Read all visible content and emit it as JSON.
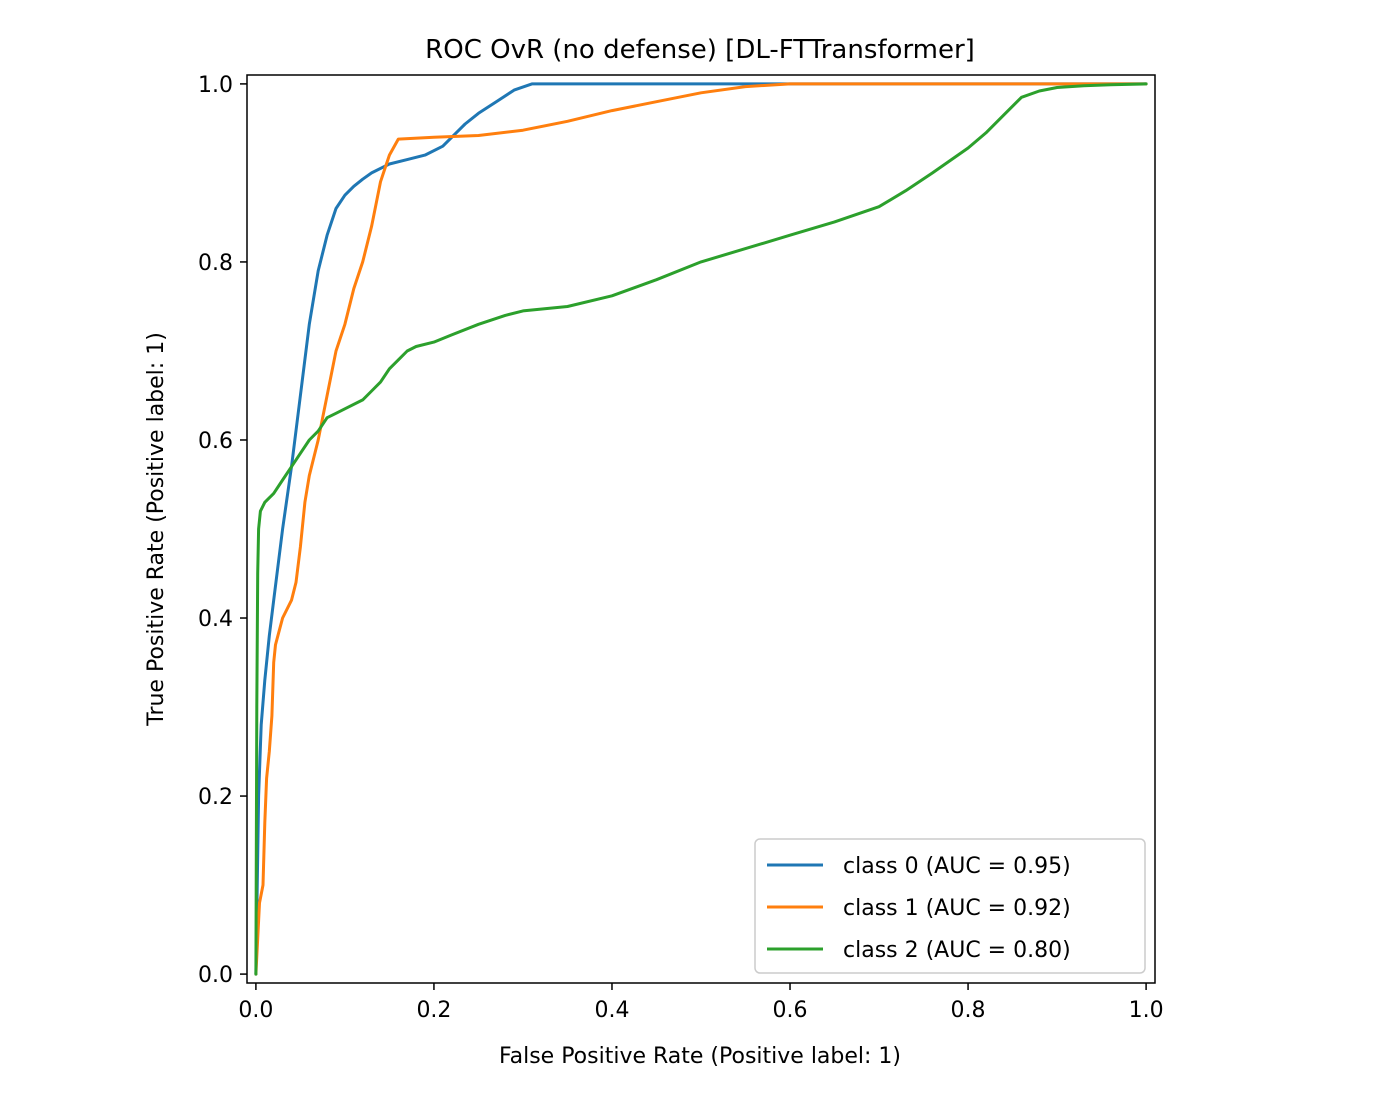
{
  "chart_data": {
    "type": "line",
    "title": "ROC OvR (no defense) [DL-FTTransformer]",
    "xlabel": "False Positive Rate (Positive label: 1)",
    "ylabel": "True Positive Rate (Positive label: 1)",
    "xlim": [
      -0.01,
      1.01
    ],
    "ylim": [
      -0.01,
      1.01
    ],
    "xticks": [
      "0.0",
      "0.2",
      "0.4",
      "0.6",
      "0.8",
      "1.0"
    ],
    "yticks": [
      "0.0",
      "0.2",
      "0.4",
      "0.6",
      "0.8",
      "1.0"
    ],
    "grid": false,
    "legend_position": "lower-right",
    "series": [
      {
        "name": "class 0 (AUC = 0.95)",
        "color": "#1f77b4",
        "points": [
          [
            0,
            0
          ],
          [
            0.003,
            0.2
          ],
          [
            0.006,
            0.28
          ],
          [
            0.01,
            0.33
          ],
          [
            0.015,
            0.38
          ],
          [
            0.02,
            0.42
          ],
          [
            0.03,
            0.5
          ],
          [
            0.04,
            0.57
          ],
          [
            0.05,
            0.65
          ],
          [
            0.06,
            0.73
          ],
          [
            0.07,
            0.79
          ],
          [
            0.08,
            0.83
          ],
          [
            0.09,
            0.86
          ],
          [
            0.1,
            0.875
          ],
          [
            0.11,
            0.885
          ],
          [
            0.12,
            0.893
          ],
          [
            0.13,
            0.9
          ],
          [
            0.15,
            0.91
          ],
          [
            0.17,
            0.915
          ],
          [
            0.19,
            0.92
          ],
          [
            0.21,
            0.93
          ],
          [
            0.22,
            0.94
          ],
          [
            0.235,
            0.955
          ],
          [
            0.25,
            0.967
          ],
          [
            0.27,
            0.98
          ],
          [
            0.29,
            0.993
          ],
          [
            0.31,
            1.0
          ],
          [
            0.35,
            1.0
          ],
          [
            0.5,
            1.0
          ],
          [
            1.0,
            1.0
          ]
        ]
      },
      {
        "name": "class 1 (AUC = 0.92)",
        "color": "#ff7f0e",
        "points": [
          [
            0,
            0
          ],
          [
            0.002,
            0.04
          ],
          [
            0.004,
            0.08
          ],
          [
            0.008,
            0.1
          ],
          [
            0.01,
            0.17
          ],
          [
            0.012,
            0.22
          ],
          [
            0.015,
            0.25
          ],
          [
            0.018,
            0.29
          ],
          [
            0.02,
            0.35
          ],
          [
            0.022,
            0.37
          ],
          [
            0.03,
            0.4
          ],
          [
            0.04,
            0.42
          ],
          [
            0.045,
            0.44
          ],
          [
            0.05,
            0.48
          ],
          [
            0.055,
            0.53
          ],
          [
            0.06,
            0.56
          ],
          [
            0.07,
            0.6
          ],
          [
            0.08,
            0.65
          ],
          [
            0.09,
            0.7
          ],
          [
            0.1,
            0.73
          ],
          [
            0.11,
            0.77
          ],
          [
            0.12,
            0.8
          ],
          [
            0.13,
            0.84
          ],
          [
            0.14,
            0.89
          ],
          [
            0.15,
            0.92
          ],
          [
            0.16,
            0.938
          ],
          [
            0.2,
            0.94
          ],
          [
            0.25,
            0.942
          ],
          [
            0.3,
            0.948
          ],
          [
            0.35,
            0.958
          ],
          [
            0.4,
            0.97
          ],
          [
            0.45,
            0.98
          ],
          [
            0.5,
            0.99
          ],
          [
            0.55,
            0.997
          ],
          [
            0.6,
            1.0
          ],
          [
            0.8,
            1.0
          ],
          [
            1.0,
            1.0
          ]
        ]
      },
      {
        "name": "class 2 (AUC = 0.80)",
        "color": "#2ca02c",
        "points": [
          [
            0,
            0
          ],
          [
            0.001,
            0.3
          ],
          [
            0.002,
            0.45
          ],
          [
            0.003,
            0.5
          ],
          [
            0.005,
            0.52
          ],
          [
            0.01,
            0.53
          ],
          [
            0.02,
            0.54
          ],
          [
            0.03,
            0.555
          ],
          [
            0.04,
            0.57
          ],
          [
            0.05,
            0.585
          ],
          [
            0.06,
            0.6
          ],
          [
            0.07,
            0.61
          ],
          [
            0.08,
            0.625
          ],
          [
            0.09,
            0.63
          ],
          [
            0.1,
            0.635
          ],
          [
            0.12,
            0.645
          ],
          [
            0.13,
            0.655
          ],
          [
            0.14,
            0.665
          ],
          [
            0.15,
            0.68
          ],
          [
            0.16,
            0.69
          ],
          [
            0.17,
            0.7
          ],
          [
            0.18,
            0.705
          ],
          [
            0.2,
            0.71
          ],
          [
            0.22,
            0.718
          ],
          [
            0.25,
            0.73
          ],
          [
            0.28,
            0.74
          ],
          [
            0.3,
            0.745
          ],
          [
            0.35,
            0.75
          ],
          [
            0.4,
            0.762
          ],
          [
            0.45,
            0.78
          ],
          [
            0.5,
            0.8
          ],
          [
            0.55,
            0.815
          ],
          [
            0.6,
            0.83
          ],
          [
            0.65,
            0.845
          ],
          [
            0.7,
            0.862
          ],
          [
            0.73,
            0.88
          ],
          [
            0.76,
            0.9
          ],
          [
            0.8,
            0.928
          ],
          [
            0.82,
            0.945
          ],
          [
            0.84,
            0.965
          ],
          [
            0.86,
            0.985
          ],
          [
            0.88,
            0.992
          ],
          [
            0.9,
            0.996
          ],
          [
            0.93,
            0.998
          ],
          [
            0.96,
            0.999
          ],
          [
            1.0,
            1.0
          ]
        ]
      }
    ]
  }
}
